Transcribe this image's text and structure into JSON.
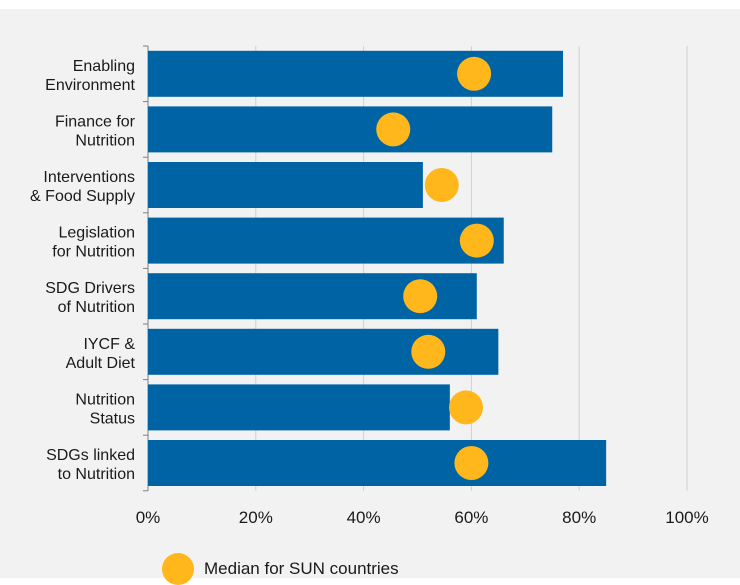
{
  "chart_data": {
    "type": "bar",
    "orientation": "horizontal",
    "categories": [
      [
        "Enabling",
        "Environment"
      ],
      [
        "Finance for",
        "Nutrition"
      ],
      [
        "Interventions",
        "& Food Supply"
      ],
      [
        "Legislation",
        "for Nutrition"
      ],
      [
        "SDG Drivers",
        "of Nutrition"
      ],
      [
        "IYCF &",
        "Adult Diet"
      ],
      [
        "Nutrition",
        "Status"
      ],
      [
        "SDGs linked",
        "to Nutrition"
      ]
    ],
    "series": [
      {
        "values": [
          77,
          75,
          51,
          66,
          61,
          65,
          56,
          85
        ],
        "color": "#0064a4"
      },
      {
        "name": "Median for SUN countries",
        "values": [
          60.5,
          45.5,
          54.5,
          61,
          50.5,
          52,
          59,
          60
        ],
        "color": "#ffb71b",
        "marker": "circle"
      }
    ],
    "xlim": [
      0,
      100
    ],
    "x_ticks": [
      "0%",
      "20%",
      "40%",
      "60%",
      "80%",
      "100%"
    ],
    "grid": "vertical",
    "legend_position": "bottom"
  }
}
